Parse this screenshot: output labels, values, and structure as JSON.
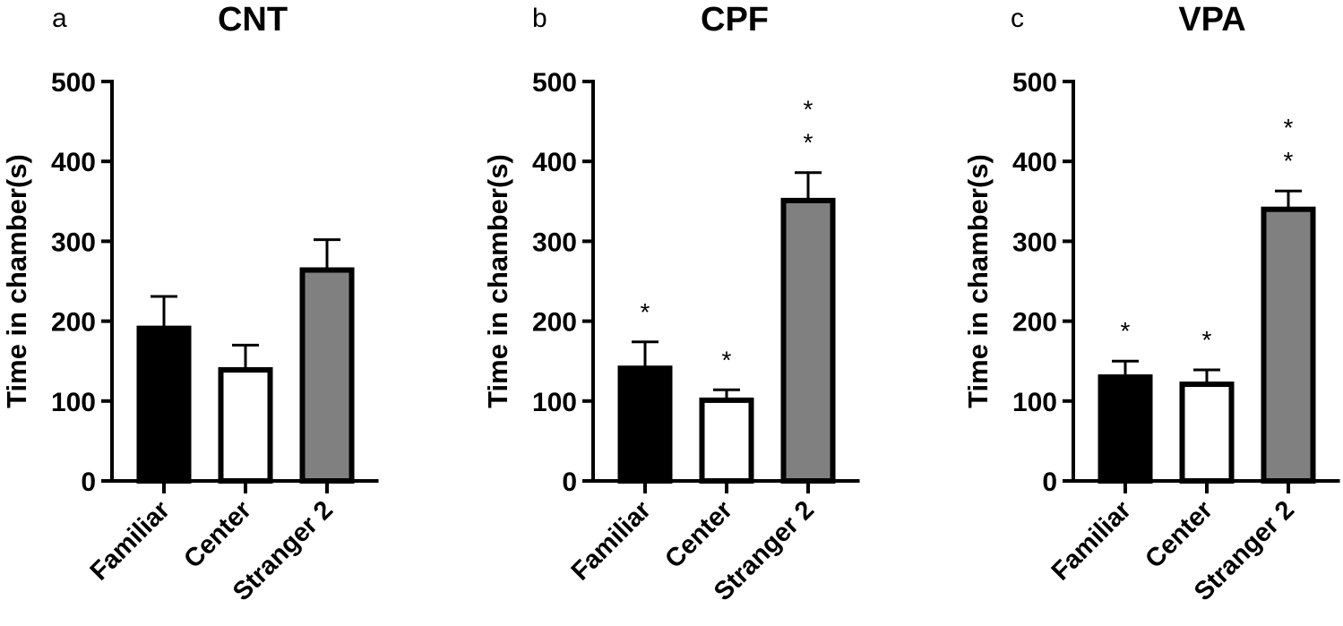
{
  "colors": {
    "familiar": "#000000",
    "center": "#ffffff",
    "stranger2": "#808080",
    "stroke": "#000000"
  },
  "chart_data": [
    {
      "type": "bar",
      "panel_letter": "a",
      "title": "CNT",
      "ylabel": "Time in chamber(s)",
      "ylim": [
        0,
        500
      ],
      "yticks": [
        "0",
        "100",
        "200",
        "300",
        "400",
        "500"
      ],
      "categories": [
        "Familiar",
        "Center",
        "Stranger 2"
      ],
      "values": [
        191,
        139,
        264
      ],
      "error": [
        40,
        31,
        38
      ],
      "significance": [
        "",
        "",
        ""
      ]
    },
    {
      "type": "bar",
      "panel_letter": "b",
      "title": "CPF",
      "ylabel": "Time in chamber(s)",
      "ylim": [
        0,
        500
      ],
      "yticks": [
        "0",
        "100",
        "200",
        "300",
        "400",
        "500"
      ],
      "categories": [
        "Familiar",
        "Center",
        "Stranger 2"
      ],
      "values": [
        141,
        101,
        351
      ],
      "error": [
        33,
        13,
        35
      ],
      "significance": [
        "*",
        "*",
        "*\n*"
      ]
    },
    {
      "type": "bar",
      "panel_letter": "c",
      "title": "VPA",
      "ylabel": "Time in chamber(s)",
      "ylim": [
        0,
        500
      ],
      "yticks": [
        "0",
        "100",
        "200",
        "300",
        "400",
        "500"
      ],
      "categories": [
        "Familiar",
        "Center",
        "Stranger 2"
      ],
      "values": [
        130,
        121,
        340
      ],
      "error": [
        20,
        18,
        23
      ],
      "significance": [
        "*",
        "*",
        "*\n*"
      ]
    }
  ]
}
